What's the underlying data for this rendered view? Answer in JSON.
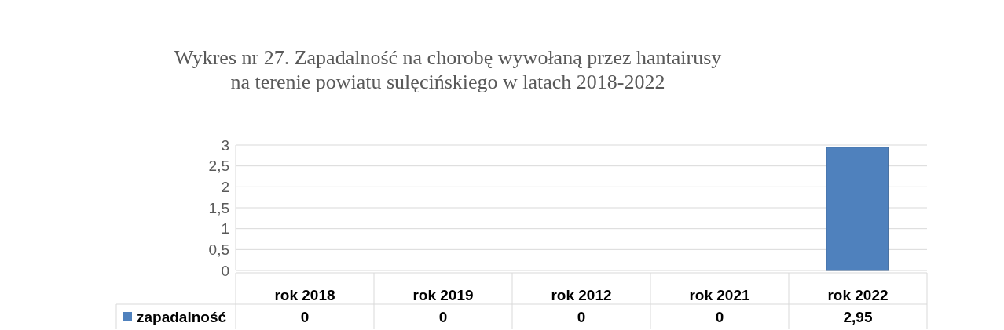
{
  "chart_data": {
    "type": "bar",
    "title": "Wykres nr 27. Zapadalność na chorobę wywołaną przez hantairusy\nna terenie powiatu sulęcińskiego w latach 2018-2022",
    "categories": [
      "rok 2018",
      "rok 2019",
      "rok 2012",
      "rok 2021",
      "rok 2022"
    ],
    "series": [
      {
        "name": "zapadalność",
        "color": "#4f81bd",
        "values": [
          0,
          0,
          0,
          0,
          2.95
        ],
        "value_labels": [
          "0",
          "0",
          "0",
          "0",
          "2,95"
        ]
      }
    ],
    "ylim": [
      0,
      3
    ],
    "yticks": [
      0,
      {
        "value": 0.5,
        "label": "0,5"
      },
      1,
      {
        "value": 1.5,
        "label": "1,5"
      },
      2,
      {
        "value": 2.5,
        "label": "2,5"
      },
      3
    ],
    "grid": "y",
    "legend": "bottom"
  }
}
